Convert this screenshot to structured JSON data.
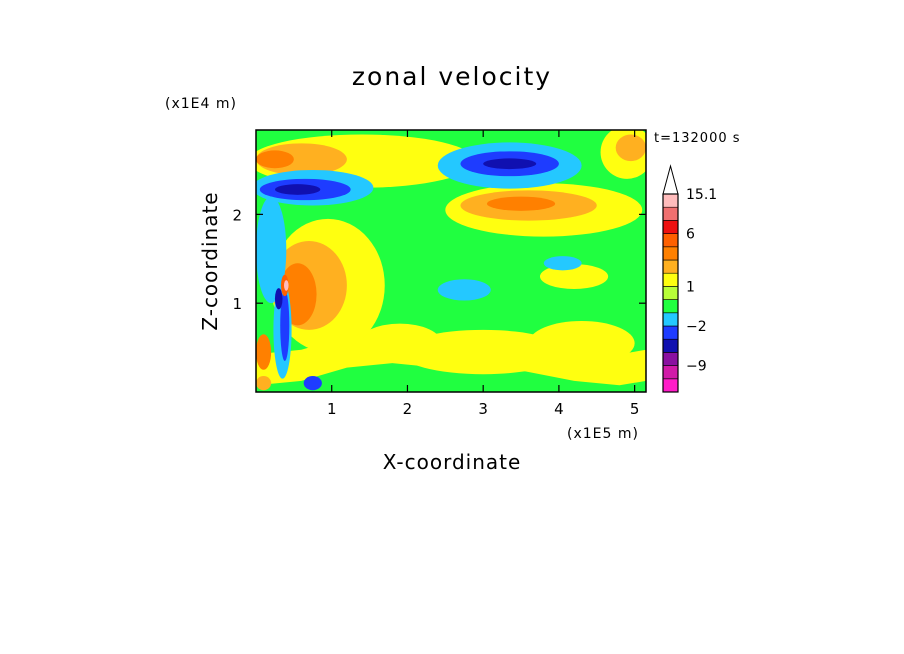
{
  "chart_data": {
    "type": "heatmap",
    "title": "zonal velocity",
    "xlabel": "X-coordinate",
    "ylabel": "Z-coordinate",
    "x_unit_label": "(x1E5 m)",
    "y_unit_label": "(x1E4 m)",
    "time_label": "t=132000 s",
    "xlim": [
      0,
      5.15
    ],
    "ylim": [
      0,
      2.95
    ],
    "x_ticks": [
      1,
      2,
      3,
      4,
      5
    ],
    "x_tick_labels": [
      "1",
      "2",
      "3",
      "4",
      "5"
    ],
    "y_ticks": [
      1,
      2
    ],
    "y_tick_labels": [
      "1",
      "2"
    ],
    "colorbar": {
      "levels_bottom_to_top": [
        -15,
        -12,
        -9,
        -6,
        -4,
        -2,
        -1,
        0,
        1,
        2,
        3,
        4,
        6,
        8,
        10,
        15.1
      ],
      "colors_bottom_to_top": [
        "#ff1cc8",
        "#d11aa8",
        "#8a10a0",
        "#1010b0",
        "#1e3cff",
        "#24c8ff",
        "#20ff40",
        "#b8ff38",
        "#ffff10",
        "#ffb020",
        "#ff8000",
        "#ff6000",
        "#ee1010",
        "#f07070",
        "#ffbcbc"
      ],
      "top_triangle_color": "#ffffff",
      "labels": [
        {
          "text": "15.1",
          "value": 15.1
        },
        {
          "text": "6",
          "value": 6
        },
        {
          "text": "1",
          "value": 1
        },
        {
          "text": "−2",
          "value": -2
        },
        {
          "text": "−9",
          "value": -9
        }
      ]
    },
    "background_color": "#20ff40",
    "regions": [
      {
        "kind": "band",
        "color": "#ffff10",
        "x": [
          0.0,
          0.6,
          1.2,
          1.8,
          2.4,
          3.0,
          3.6,
          4.2,
          4.8,
          5.15
        ],
        "y": [
          0.25,
          0.3,
          0.45,
          0.5,
          0.45,
          0.5,
          0.4,
          0.3,
          0.25,
          0.3
        ],
        "h": 0.35
      },
      {
        "kind": "blob",
        "color": "#ffff10",
        "cx": 3.0,
        "cy": 0.45,
        "rx": 1.1,
        "ry": 0.25
      },
      {
        "kind": "blob",
        "color": "#ffff10",
        "cx": 1.9,
        "cy": 0.55,
        "rx": 0.55,
        "ry": 0.22
      },
      {
        "kind": "blob",
        "color": "#ffff10",
        "cx": 4.3,
        "cy": 0.55,
        "rx": 0.7,
        "ry": 0.25
      },
      {
        "kind": "blob",
        "color": "#ffff10",
        "cx": 4.2,
        "cy": 1.3,
        "rx": 0.45,
        "ry": 0.14
      },
      {
        "kind": "blob",
        "color": "#ffff10",
        "cx": 0.95,
        "cy": 1.2,
        "rx": 0.75,
        "ry": 0.75
      },
      {
        "kind": "blob",
        "color": "#ffb020",
        "cx": 0.7,
        "cy": 1.2,
        "rx": 0.5,
        "ry": 0.5
      },
      {
        "kind": "blob",
        "color": "#ff8000",
        "cx": 0.55,
        "cy": 1.1,
        "rx": 0.25,
        "ry": 0.35
      },
      {
        "kind": "blob",
        "color": "#ffff10",
        "cx": 3.8,
        "cy": 2.05,
        "rx": 1.3,
        "ry": 0.3
      },
      {
        "kind": "blob",
        "color": "#ffb020",
        "cx": 3.6,
        "cy": 2.1,
        "rx": 0.9,
        "ry": 0.17
      },
      {
        "kind": "blob",
        "color": "#ff8000",
        "cx": 3.5,
        "cy": 2.12,
        "rx": 0.45,
        "ry": 0.08
      },
      {
        "kind": "blob",
        "color": "#ffff10",
        "cx": 1.4,
        "cy": 2.6,
        "rx": 1.5,
        "ry": 0.3
      },
      {
        "kind": "blob",
        "color": "#ffb020",
        "cx": 0.6,
        "cy": 2.62,
        "rx": 0.6,
        "ry": 0.18
      },
      {
        "kind": "blob",
        "color": "#ff8000",
        "cx": 0.25,
        "cy": 2.62,
        "rx": 0.25,
        "ry": 0.1
      },
      {
        "kind": "blob",
        "color": "#ffff10",
        "cx": 4.9,
        "cy": 2.7,
        "rx": 0.35,
        "ry": 0.3
      },
      {
        "kind": "blob",
        "color": "#ffb020",
        "cx": 4.95,
        "cy": 2.75,
        "rx": 0.2,
        "ry": 0.15
      },
      {
        "kind": "blob",
        "color": "#24c8ff",
        "cx": 3.35,
        "cy": 2.55,
        "rx": 0.95,
        "ry": 0.26
      },
      {
        "kind": "blob",
        "color": "#1e3cff",
        "cx": 3.35,
        "cy": 2.57,
        "rx": 0.65,
        "ry": 0.14
      },
      {
        "kind": "blob",
        "color": "#1010b0",
        "cx": 3.35,
        "cy": 2.57,
        "rx": 0.35,
        "ry": 0.06
      },
      {
        "kind": "blob",
        "color": "#24c8ff",
        "cx": 0.75,
        "cy": 2.3,
        "rx": 0.8,
        "ry": 0.2
      },
      {
        "kind": "blob",
        "color": "#1e3cff",
        "cx": 0.65,
        "cy": 2.28,
        "rx": 0.6,
        "ry": 0.12
      },
      {
        "kind": "blob",
        "color": "#1010b0",
        "cx": 0.55,
        "cy": 2.28,
        "rx": 0.3,
        "ry": 0.06
      },
      {
        "kind": "blob",
        "color": "#24c8ff",
        "cx": 0.2,
        "cy": 1.6,
        "rx": 0.2,
        "ry": 0.6
      },
      {
        "kind": "blob",
        "color": "#24c8ff",
        "cx": 2.75,
        "cy": 1.15,
        "rx": 0.35,
        "ry": 0.12
      },
      {
        "kind": "blob",
        "color": "#24c8ff",
        "cx": 4.05,
        "cy": 1.45,
        "rx": 0.25,
        "ry": 0.08
      },
      {
        "kind": "blob",
        "color": "#24c8ff",
        "cx": 0.35,
        "cy": 0.7,
        "rx": 0.12,
        "ry": 0.55
      },
      {
        "kind": "blob",
        "color": "#1e3cff",
        "cx": 0.38,
        "cy": 0.75,
        "rx": 0.06,
        "ry": 0.4
      },
      {
        "kind": "blob",
        "color": "#1010b0",
        "cx": 0.3,
        "cy": 1.05,
        "rx": 0.05,
        "ry": 0.12
      },
      {
        "kind": "blob",
        "color": "#1e3cff",
        "cx": 0.75,
        "cy": 0.1,
        "rx": 0.12,
        "ry": 0.08
      },
      {
        "kind": "blob",
        "color": "#ff6000",
        "cx": 0.38,
        "cy": 1.2,
        "rx": 0.05,
        "ry": 0.12
      },
      {
        "kind": "blob",
        "color": "#ffbcbc",
        "cx": 0.4,
        "cy": 1.2,
        "rx": 0.03,
        "ry": 0.06
      },
      {
        "kind": "blob",
        "color": "#ff8000",
        "cx": 0.1,
        "cy": 0.45,
        "rx": 0.1,
        "ry": 0.2
      },
      {
        "kind": "blob",
        "color": "#ffb020",
        "cx": 0.1,
        "cy": 0.1,
        "rx": 0.1,
        "ry": 0.08
      }
    ]
  }
}
